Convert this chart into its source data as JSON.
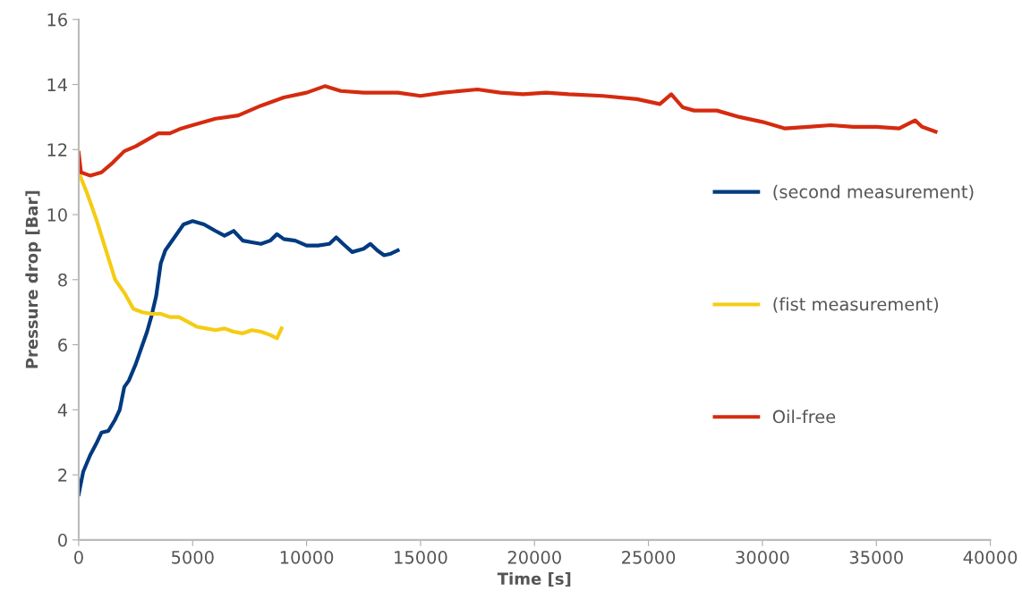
{
  "chart_data": {
    "type": "line",
    "xlabel": "Time [s]",
    "ylabel": "Pressure drop [Bar]",
    "xlim": [
      0,
      40000
    ],
    "xticks": [
      0,
      5000,
      10000,
      15000,
      20000,
      25000,
      30000,
      35000,
      40000
    ],
    "ylim": [
      0,
      16
    ],
    "yticks": [
      0,
      2,
      4,
      6,
      8,
      10,
      12,
      14,
      16
    ],
    "grid": false,
    "legend": "right",
    "marker": "none",
    "line_style": "solid",
    "series": [
      {
        "name": "(second measurement)",
        "color": "#003a80",
        "x": [
          0,
          200,
          500,
          800,
          1000,
          1300,
          1600,
          1800,
          2000,
          2200,
          2500,
          2800,
          3000,
          3200,
          3400,
          3600,
          3800,
          4200,
          4600,
          5000,
          5500,
          6000,
          6400,
          6800,
          7200,
          7600,
          8000,
          8400,
          8700,
          9000,
          9500,
          10000,
          10500,
          11000,
          11300,
          11600,
          12000,
          12500,
          12800,
          13100,
          13400,
          13700,
          14000
        ],
        "values": [
          1.4,
          2.1,
          2.6,
          3.0,
          3.3,
          3.35,
          3.7,
          4.0,
          4.7,
          4.9,
          5.4,
          6.0,
          6.4,
          6.9,
          7.5,
          8.5,
          8.9,
          9.3,
          9.7,
          9.8,
          9.7,
          9.5,
          9.35,
          9.5,
          9.2,
          9.15,
          9.1,
          9.2,
          9.4,
          9.25,
          9.2,
          9.05,
          9.05,
          9.1,
          9.3,
          9.1,
          8.85,
          8.95,
          9.1,
          8.9,
          8.75,
          8.8,
          8.9
        ]
      },
      {
        "name": "(fist measurement)",
        "color": "#f5cc14",
        "x": [
          0,
          400,
          800,
          1200,
          1600,
          2000,
          2400,
          2800,
          3200,
          3600,
          4000,
          4400,
          4800,
          5200,
          5600,
          6000,
          6400,
          6800,
          7200,
          7600,
          8000,
          8400,
          8700,
          8900
        ],
        "values": [
          11.3,
          10.6,
          9.8,
          8.9,
          8.0,
          7.6,
          7.1,
          7.0,
          6.95,
          6.95,
          6.85,
          6.85,
          6.7,
          6.55,
          6.5,
          6.45,
          6.5,
          6.4,
          6.35,
          6.45,
          6.4,
          6.3,
          6.2,
          6.5
        ]
      },
      {
        "name": "Oil-free",
        "color": "#d52b0f",
        "x": [
          0,
          100,
          500,
          1000,
          1500,
          2000,
          2500,
          3000,
          3500,
          4000,
          4500,
          5000,
          6000,
          7000,
          8000,
          9000,
          10000,
          10800,
          11500,
          12500,
          14000,
          15000,
          16000,
          17500,
          18500,
          19500,
          20500,
          21500,
          23000,
          24500,
          25500,
          26000,
          26500,
          27000,
          28000,
          29000,
          30000,
          31000,
          32000,
          33000,
          34000,
          35000,
          36000,
          36700,
          37000,
          37600
        ],
        "values": [
          11.9,
          11.3,
          11.2,
          11.3,
          11.6,
          11.95,
          12.1,
          12.3,
          12.5,
          12.5,
          12.65,
          12.75,
          12.95,
          13.05,
          13.35,
          13.6,
          13.75,
          13.95,
          13.8,
          13.75,
          13.75,
          13.65,
          13.75,
          13.85,
          13.75,
          13.7,
          13.75,
          13.7,
          13.65,
          13.55,
          13.4,
          13.7,
          13.3,
          13.2,
          13.2,
          13.0,
          12.85,
          12.65,
          12.7,
          12.75,
          12.7,
          12.7,
          12.65,
          12.9,
          12.7,
          12.55
        ]
      }
    ]
  }
}
